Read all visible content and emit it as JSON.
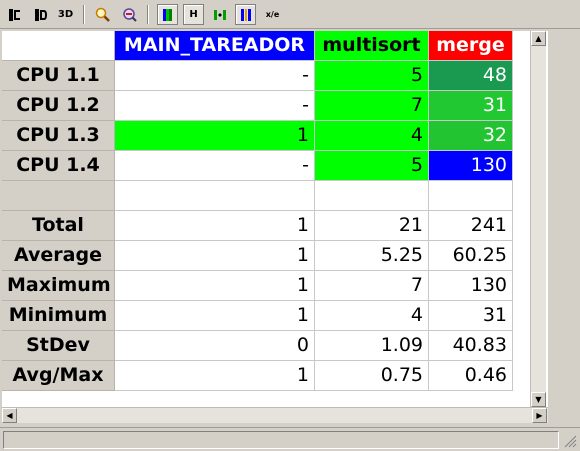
{
  "toolbar": {
    "buttons": [
      {
        "name": "open-control-window-icon",
        "glyph": "C"
      },
      {
        "name": "open-data-window-icon",
        "glyph": "D"
      },
      {
        "name": "3d-view-icon",
        "glyph": "3D"
      },
      {
        "name": "zoom-icon",
        "glyph": ""
      },
      {
        "name": "open-filtered-control-icon",
        "glyph": ""
      },
      {
        "name": "gradient-color-icon",
        "glyph": ""
      },
      {
        "name": "horizontal-icon",
        "glyph": "H"
      },
      {
        "name": "hide-empty-columns-icon",
        "glyph": ""
      },
      {
        "name": "sort-columns-icon",
        "glyph": ""
      },
      {
        "name": "label-format-icon",
        "glyph": "x/e"
      }
    ]
  },
  "table": {
    "columns": [
      {
        "label": "MAIN_TAREADOR",
        "bg": "#0000ff",
        "fg": "#ffffff"
      },
      {
        "label": "multisort",
        "bg": "#00ff00",
        "fg": "#000000"
      },
      {
        "label": "merge",
        "bg": "#ff0000",
        "fg": "#ffffff"
      }
    ],
    "cpu_rows": [
      {
        "label": "CPU 1.1",
        "cells": [
          {
            "v": "-",
            "bg": "#ffffff",
            "fg": "#000000"
          },
          {
            "v": "5",
            "bg": "#00ff00",
            "fg": "#000000"
          },
          {
            "v": "48",
            "bg": "#1a9a50",
            "fg": "#ffffff"
          }
        ]
      },
      {
        "label": "CPU 1.2",
        "cells": [
          {
            "v": "-",
            "bg": "#ffffff",
            "fg": "#000000"
          },
          {
            "v": "7",
            "bg": "#00ff00",
            "fg": "#000000"
          },
          {
            "v": "31",
            "bg": "#22c832",
            "fg": "#ffffff"
          }
        ]
      },
      {
        "label": "CPU 1.3",
        "cells": [
          {
            "v": "1",
            "bg": "#00ff00",
            "fg": "#000000"
          },
          {
            "v": "4",
            "bg": "#00ff00",
            "fg": "#000000"
          },
          {
            "v": "32",
            "bg": "#22c432",
            "fg": "#ffffff"
          }
        ]
      },
      {
        "label": "CPU 1.4",
        "cells": [
          {
            "v": "-",
            "bg": "#ffffff",
            "fg": "#000000"
          },
          {
            "v": "5",
            "bg": "#00ff00",
            "fg": "#000000"
          },
          {
            "v": "130",
            "bg": "#0000ff",
            "fg": "#ffffff"
          }
        ]
      }
    ],
    "stat_rows": [
      {
        "label": "Total",
        "values": [
          "1",
          "21",
          "241"
        ]
      },
      {
        "label": "Average",
        "values": [
          "1",
          "5.25",
          "60.25"
        ]
      },
      {
        "label": "Maximum",
        "values": [
          "1",
          "7",
          "130"
        ]
      },
      {
        "label": "Minimum",
        "values": [
          "1",
          "4",
          "31"
        ]
      },
      {
        "label": "StDev",
        "values": [
          "0",
          "1.09",
          "40.83"
        ]
      },
      {
        "label": "Avg/Max",
        "values": [
          "1",
          "0.75",
          "0.46"
        ]
      }
    ]
  }
}
